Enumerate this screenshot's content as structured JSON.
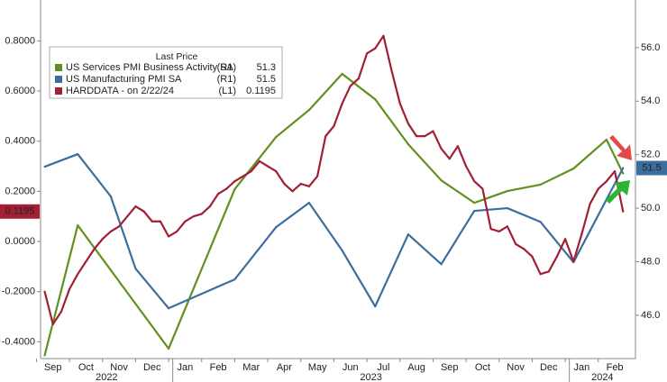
{
  "chart_data": {
    "type": "line",
    "categories": [
      null,
      "Sep",
      null,
      null,
      null,
      "Oct",
      null,
      null,
      null,
      "Nov",
      null,
      null,
      null,
      "Dec",
      null,
      null,
      null,
      "Jan",
      null,
      null,
      null,
      "Feb",
      null,
      null,
      null,
      "Mar",
      null,
      null,
      null,
      "Apr",
      null,
      null,
      null,
      "May",
      null,
      null,
      null,
      "Jun",
      null,
      null,
      null,
      "Jul",
      null,
      null,
      null,
      "Aug",
      null,
      null,
      null,
      "Sep",
      null,
      null,
      null,
      "Oct",
      null,
      null,
      null,
      "Nov",
      null,
      null,
      null,
      "Dec",
      null,
      null,
      null,
      "Jan",
      null,
      null,
      null,
      "Feb",
      null,
      null
    ],
    "years": [
      "2022",
      "2023",
      "2024"
    ],
    "legend_title": "Last Price",
    "series": [
      {
        "name": "US Services PMI Business Activity SA",
        "axis_label": "(R1)",
        "last": 51.3,
        "color": "#62901f",
        "axis": "y2",
        "values": [
          44.5,
          null,
          null,
          null,
          49.36,
          null,
          null,
          null,
          null,
          null,
          null,
          null,
          null,
          null,
          null,
          44.75,
          null,
          null,
          null,
          null,
          null,
          null,
          null,
          50.71,
          null,
          null,
          null,
          null,
          52.66,
          null,
          null,
          null,
          53.67,
          null,
          null,
          null,
          55.02,
          null,
          null,
          null,
          54.07,
          null,
          null,
          null,
          52.39,
          null,
          null,
          null,
          51.04,
          null,
          null,
          null,
          50.2,
          null,
          null,
          null,
          50.64,
          null,
          null,
          null,
          50.88,
          null,
          null,
          null,
          51.48,
          null,
          null,
          null,
          52.56,
          null,
          51.3,
          null
        ]
      },
      {
        "name": "US Manufacturing PMI SA",
        "axis_label": "(R1)",
        "last": 51.5,
        "color": "#3b6e9e",
        "axis": "y2",
        "values": [
          51.55,
          null,
          null,
          null,
          52.02,
          null,
          null,
          null,
          50.44,
          null,
          null,
          47.74,
          null,
          null,
          null,
          46.26,
          null,
          null,
          null,
          null,
          null,
          null,
          null,
          47.34,
          null,
          null,
          null,
          null,
          49.29,
          null,
          null,
          null,
          50.2,
          null,
          null,
          null,
          48.42,
          null,
          null,
          null,
          46.33,
          null,
          null,
          null,
          49.02,
          null,
          null,
          null,
          47.91,
          null,
          null,
          null,
          49.9,
          null,
          null,
          null,
          50.0,
          null,
          null,
          null,
          49.49,
          null,
          null,
          null,
          47.98,
          null,
          null,
          null,
          null,
          null,
          51.5,
          null
        ]
      },
      {
        "name": "HARDDATA - on 2/22/24",
        "axis_label": "(L1)",
        "last": 0.1195,
        "color": "#a21f35",
        "axis": "y",
        "values": [
          -0.2,
          -0.33,
          -0.28,
          -0.19,
          -0.13,
          -0.08,
          -0.03,
          0.01,
          0.04,
          0.06,
          0.1,
          0.14,
          0.12,
          0.08,
          0.08,
          0.02,
          0.04,
          0.08,
          0.1,
          0.11,
          0.14,
          0.19,
          0.21,
          0.24,
          0.26,
          0.28,
          0.32,
          0.3,
          0.28,
          0.23,
          0.2,
          0.23,
          0.22,
          0.26,
          0.42,
          0.46,
          0.55,
          0.62,
          0.65,
          0.75,
          0.77,
          0.82,
          0.68,
          0.55,
          0.47,
          0.42,
          0.42,
          0.44,
          0.37,
          0.33,
          0.38,
          0.3,
          0.24,
          0.21,
          0.05,
          0.04,
          0.06,
          -0.01,
          -0.03,
          -0.06,
          -0.13,
          -0.12,
          -0.06,
          0.01,
          -0.08,
          0.03,
          0.15,
          0.21,
          0.24,
          0.28,
          0.1195,
          null
        ]
      }
    ],
    "ylim": [
      -0.467,
      0.963
    ],
    "yticks": [
      {
        "value": -0.4,
        "label": "-0.4000"
      },
      {
        "value": -0.2,
        "label": "-0.2000"
      },
      {
        "value": 0,
        "label": "0.0000"
      },
      {
        "value": 0.2,
        "label": "0.2000"
      },
      {
        "value": 0.4,
        "label": "0.4000"
      },
      {
        "value": 0.6,
        "label": "0.6000"
      },
      {
        "value": 0.8,
        "label": "0.8000"
      }
    ],
    "y2lim": [
      44.38,
      57.78
    ],
    "y2ticks": [
      {
        "value": 46,
        "label": "46.0"
      },
      {
        "value": 48,
        "label": "48.0"
      },
      {
        "value": 50,
        "label": "50.0"
      },
      {
        "value": 52,
        "label": "52.0"
      },
      {
        "value": 54,
        "label": "54.0"
      },
      {
        "value": 56,
        "label": "56.0"
      }
    ]
  }
}
